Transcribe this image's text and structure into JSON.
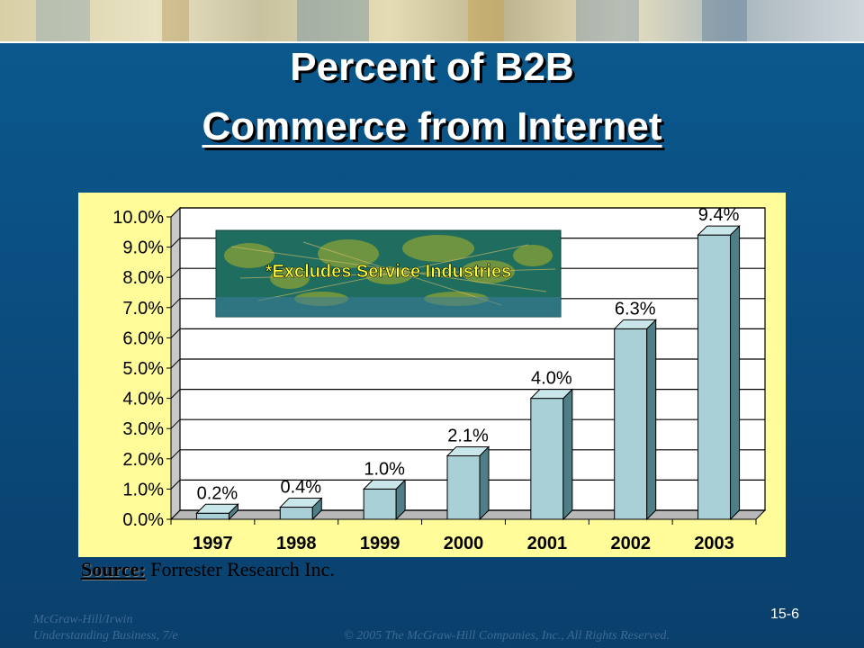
{
  "title": {
    "line1": "Percent of B2B",
    "line2": "Commerce from Internet"
  },
  "chart_data": {
    "type": "bar",
    "categories": [
      "1997",
      "1998",
      "1999",
      "2000",
      "2001",
      "2002",
      "2003"
    ],
    "values": [
      0.2,
      0.4,
      1.0,
      2.1,
      4.0,
      6.3,
      9.4
    ],
    "value_labels": [
      "0.2%",
      "0.4%",
      "1.0%",
      "2.1%",
      "4.0%",
      "6.3%",
      "9.4%"
    ],
    "y_ticks": [
      "0.0%",
      "1.0%",
      "2.0%",
      "3.0%",
      "4.0%",
      "5.0%",
      "6.0%",
      "7.0%",
      "8.0%",
      "9.0%",
      "10.0%"
    ],
    "ylim": [
      0,
      10
    ],
    "grid": true,
    "bar_color": "#a8d0d6",
    "background_color": "#fffc99",
    "annotation": "*Excludes Service Industries"
  },
  "source": {
    "label": "Source:",
    "value": "Forrester Research Inc."
  },
  "slide_number": "15-6",
  "footer": {
    "publisher": "McGraw-Hill/Irwin",
    "book": "Understanding Business, 7/e",
    "copyright": "© 2005 The McGraw-Hill Companies, Inc., All Rights Reserved."
  },
  "colors": {
    "background": "#0b4f82",
    "title": "#ffffff",
    "footer": "#3d6a93"
  }
}
